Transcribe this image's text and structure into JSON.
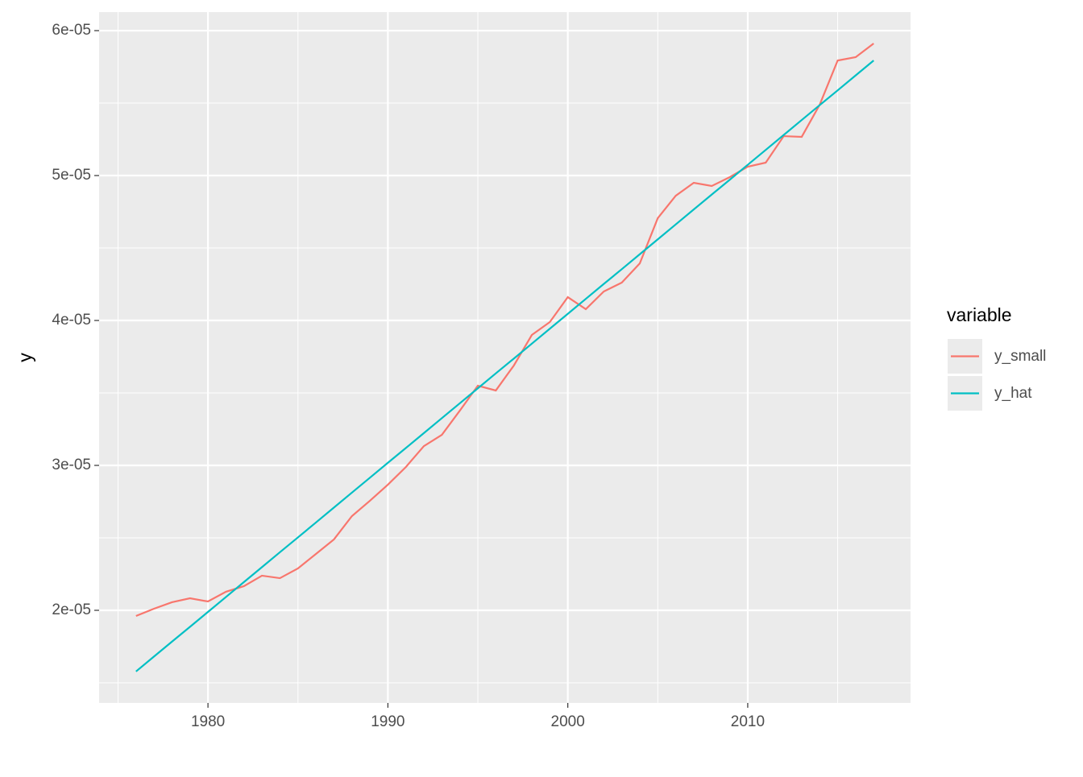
{
  "chart_data": {
    "type": "line",
    "y_label": "y",
    "legend_title": "variable",
    "legend_position": "right",
    "grid": true,
    "x": [
      1976,
      1977,
      1978,
      1979,
      1980,
      1981,
      1982,
      1983,
      1984,
      1985,
      1986,
      1987,
      1988,
      1989,
      1990,
      1991,
      1992,
      1993,
      1994,
      1995,
      1996,
      1997,
      1998,
      1999,
      2000,
      2001,
      2002,
      2003,
      2004,
      2005,
      2006,
      2007,
      2008,
      2009,
      2010,
      2011,
      2012,
      2013,
      2014,
      2015,
      2016,
      2017
    ],
    "series": [
      {
        "name": "y_small",
        "color": "#F8766D",
        "values": [
          1.961e-05,
          2.011e-05,
          2.056e-05,
          2.083e-05,
          2.061e-05,
          2.128e-05,
          2.167e-05,
          2.239e-05,
          2.222e-05,
          2.289e-05,
          2.389e-05,
          2.489e-05,
          2.65e-05,
          2.756e-05,
          2.867e-05,
          2.989e-05,
          3.133e-05,
          3.211e-05,
          3.378e-05,
          3.55e-05,
          3.517e-05,
          3.689e-05,
          3.9e-05,
          3.989e-05,
          4.161e-05,
          4.078e-05,
          4.2e-05,
          4.261e-05,
          4.394e-05,
          4.706e-05,
          4.861e-05,
          4.95e-05,
          4.928e-05,
          4.989e-05,
          5.061e-05,
          5.089e-05,
          5.272e-05,
          5.267e-05,
          5.489e-05,
          5.794e-05,
          5.817e-05,
          5.911e-05
        ]
      },
      {
        "name": "y_hat",
        "color": "#00BFC4",
        "values": [
          1.578e-05,
          1.681e-05,
          1.784e-05,
          1.886e-05,
          1.989e-05,
          2.092e-05,
          2.195e-05,
          2.298e-05,
          2.401e-05,
          2.503e-05,
          2.606e-05,
          2.709e-05,
          2.812e-05,
          2.915e-05,
          3.018e-05,
          3.12e-05,
          3.223e-05,
          3.326e-05,
          3.429e-05,
          3.532e-05,
          3.635e-05,
          3.737e-05,
          3.84e-05,
          3.943e-05,
          4.046e-05,
          4.149e-05,
          4.252e-05,
          4.354e-05,
          4.457e-05,
          4.56e-05,
          4.663e-05,
          4.766e-05,
          4.869e-05,
          4.971e-05,
          5.074e-05,
          5.177e-05,
          5.28e-05,
          5.383e-05,
          5.486e-05,
          5.588e-05,
          5.691e-05,
          5.794e-05
        ]
      }
    ],
    "xlim": [
      1973.95,
      2019.05
    ],
    "xticks": [
      1980,
      1990,
      2000,
      2010
    ],
    "ylim": [
      1.361e-05,
      6.128e-05
    ],
    "yticks": [
      {
        "value": 2e-05,
        "label": "2e-05"
      },
      {
        "value": 3e-05,
        "label": "3e-05"
      },
      {
        "value": 4e-05,
        "label": "4e-05"
      },
      {
        "value": 5e-05,
        "label": "5e-05"
      },
      {
        "value": 6e-05,
        "label": "6e-05"
      }
    ]
  }
}
